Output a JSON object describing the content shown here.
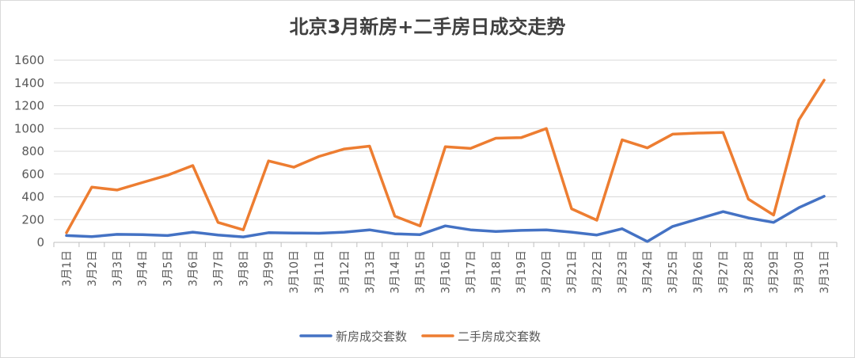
{
  "chart_data": {
    "type": "line",
    "title": "北京3月新房+二手房日成交走势",
    "xlabel": "",
    "ylabel": "",
    "ylim": [
      0,
      1600
    ],
    "yticks": [
      0,
      200,
      400,
      600,
      800,
      1000,
      1200,
      1400,
      1600
    ],
    "grid": true,
    "legend_position": "bottom",
    "categories": [
      "3月1日",
      "3月2日",
      "3月3日",
      "3月4日",
      "3月5日",
      "3月6日",
      "3月7日",
      "3月8日",
      "3月9日",
      "3月10日",
      "3月11日",
      "3月12日",
      "3月13日",
      "3月14日",
      "3月15日",
      "3月16日",
      "3月17日",
      "3月18日",
      "3月19日",
      "3月20日",
      "3月21日",
      "3月22日",
      "3月23日",
      "3月24日",
      "3月25日",
      "3月26日",
      "3月27日",
      "3月28日",
      "3月29日",
      "3月30日",
      "3月31日"
    ],
    "series": [
      {
        "name": "新房成交套数",
        "color": "#4472c4",
        "values": [
          60,
          50,
          70,
          68,
          60,
          90,
          65,
          48,
          85,
          82,
          80,
          90,
          110,
          75,
          68,
          145,
          110,
          95,
          105,
          110,
          90,
          65,
          120,
          8,
          140,
          205,
          270,
          215,
          175,
          305,
          405
        ]
      },
      {
        "name": "二手房成交套数",
        "color": "#ed7d31",
        "values": [
          85,
          485,
          460,
          525,
          590,
          675,
          175,
          110,
          715,
          660,
          755,
          820,
          845,
          230,
          145,
          840,
          825,
          915,
          920,
          1000,
          295,
          195,
          900,
          830,
          950,
          960,
          965,
          380,
          240,
          1075,
          1425
        ]
      }
    ]
  }
}
